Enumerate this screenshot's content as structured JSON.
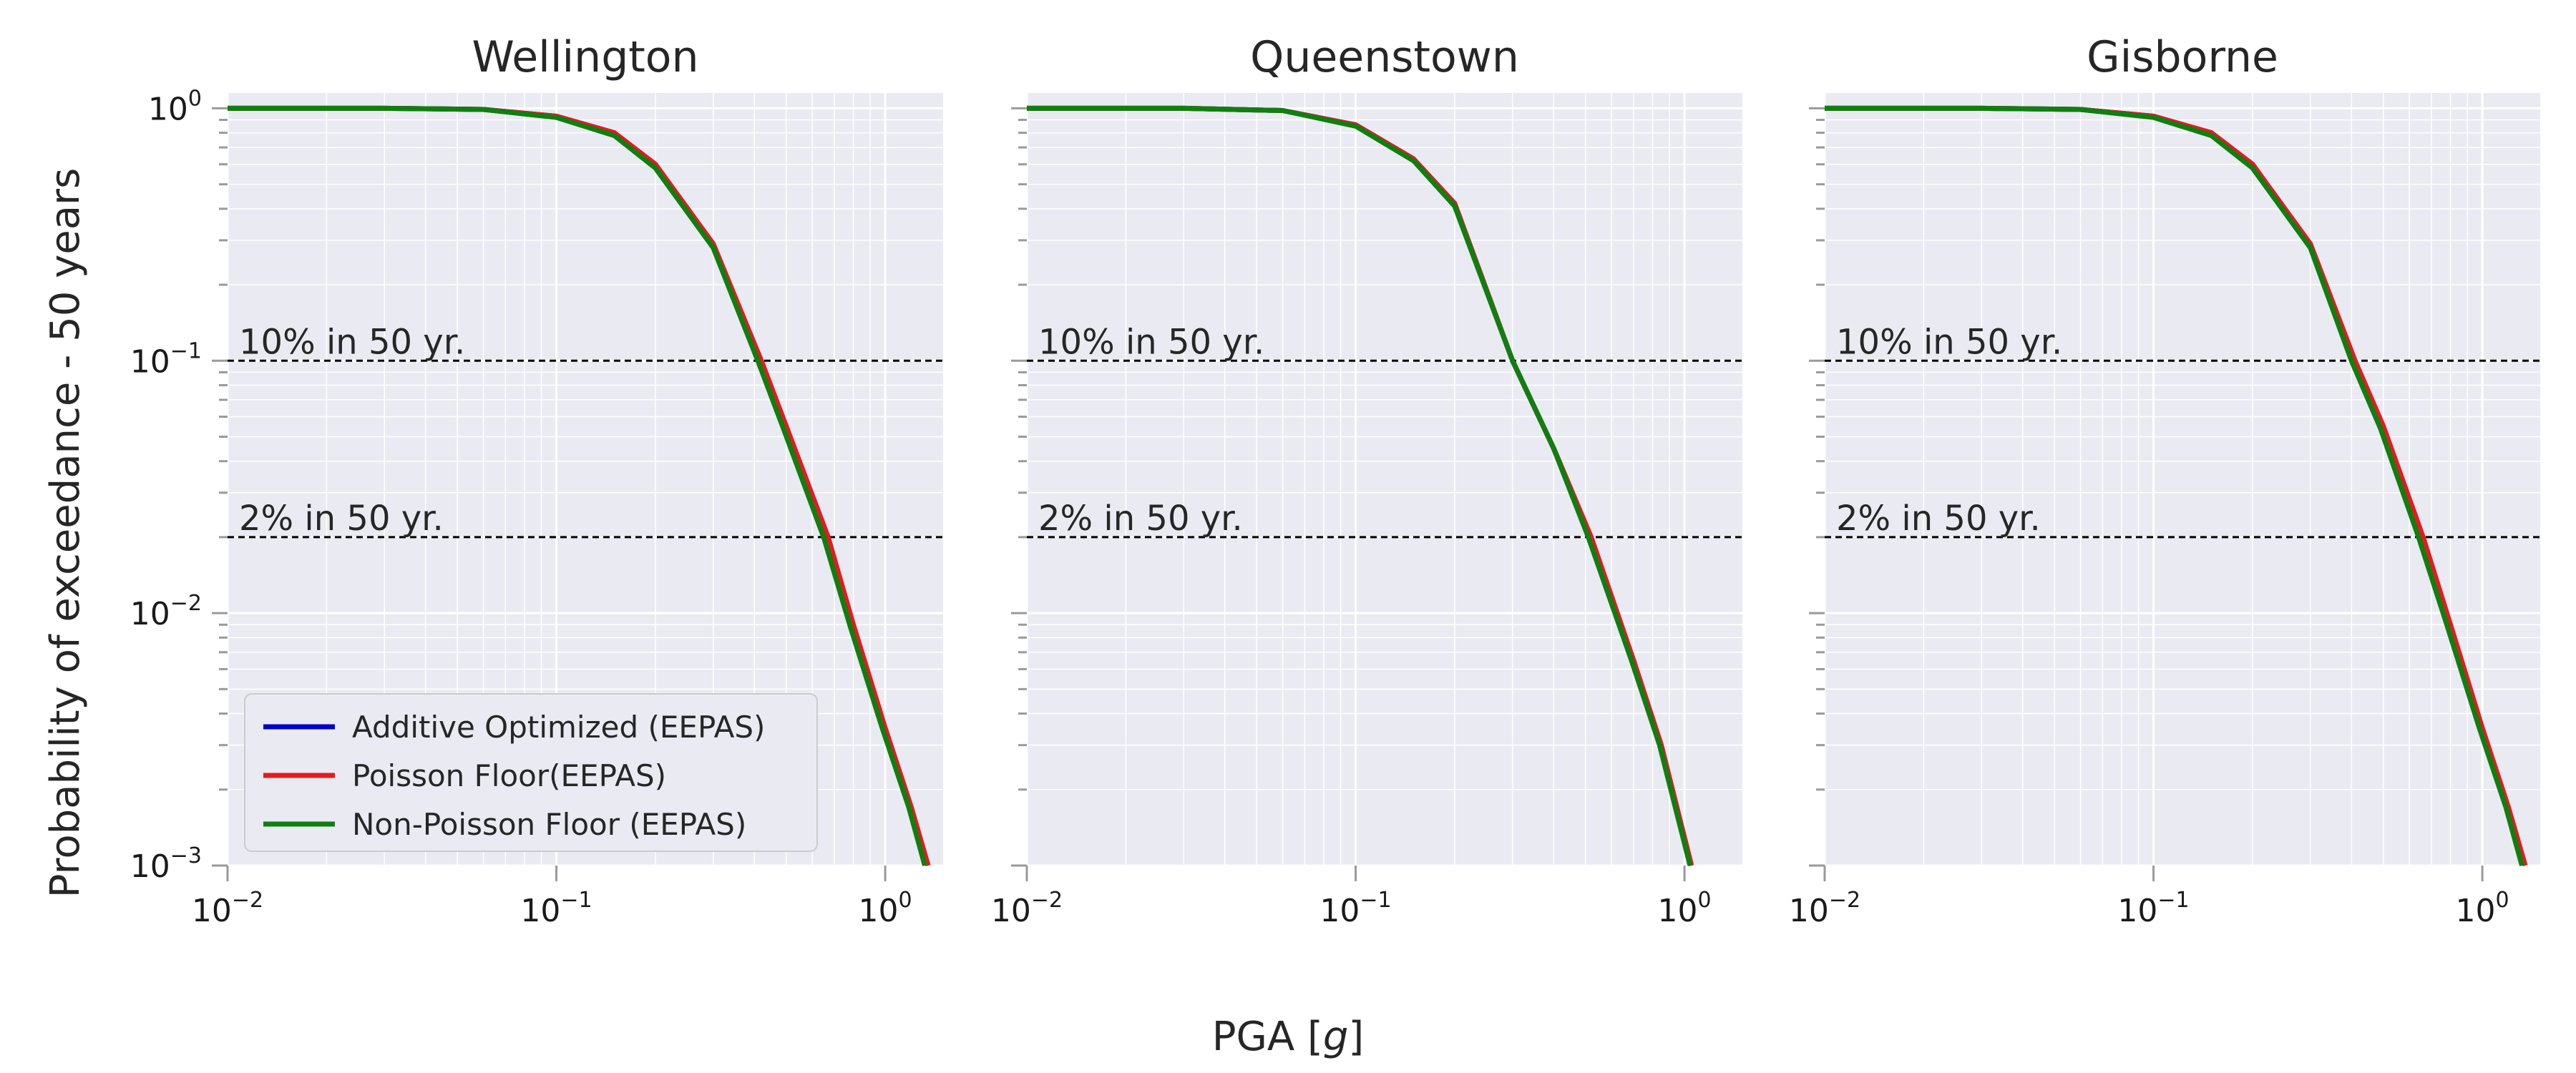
{
  "figure": {
    "ylabel": "Probability of exceedance - 50 years",
    "xlabel_prefix": "PGA [",
    "xlabel_var": "g",
    "xlabel_suffix": "]"
  },
  "colors": {
    "plot_background": "#eaeaf2",
    "grid": "#ffffff",
    "reference_line": "#000000",
    "series": [
      "#0000cc",
      "#e8191d",
      "#0f7f0f"
    ]
  },
  "chart_data": [
    {
      "type": "line",
      "title": "Wellington",
      "xscale": "log",
      "yscale": "log",
      "xlim": [
        0.01,
        1.5
      ],
      "ylim": [
        0.001,
        1.15
      ],
      "xticks": [
        {
          "base": "10",
          "exp": "−2",
          "value": 0.01
        },
        {
          "base": "10",
          "exp": "−1",
          "value": 0.1
        },
        {
          "base": "10",
          "exp": "0",
          "value": 1
        }
      ],
      "yticks": [
        {
          "base": "10",
          "exp": "0",
          "value": 1
        },
        {
          "base": "10",
          "exp": "−1",
          "value": 0.1
        },
        {
          "base": "10",
          "exp": "−2",
          "value": 0.01
        },
        {
          "base": "10",
          "exp": "−3",
          "value": 0.001
        }
      ],
      "reference_lines": [
        {
          "y": 0.1,
          "label": "10% in 50 yr."
        },
        {
          "y": 0.02,
          "label": "2% in 50 yr."
        }
      ],
      "series": [
        {
          "name": "Additive Optimized (EEPAS)",
          "x": [
            0.01,
            0.03,
            0.06,
            0.1,
            0.15,
            0.2,
            0.3,
            0.42,
            0.5,
            0.67,
            0.8,
            1.0,
            1.2,
            1.35
          ],
          "y": [
            1.0,
            1.0,
            0.99,
            0.93,
            0.8,
            0.6,
            0.29,
            0.1,
            0.055,
            0.02,
            0.009,
            0.0035,
            0.0017,
            0.001
          ]
        },
        {
          "name": "Poisson Floor(EEPAS)",
          "x": [
            0.01,
            0.03,
            0.06,
            0.1,
            0.15,
            0.2,
            0.3,
            0.42,
            0.5,
            0.67,
            0.8,
            1.0,
            1.2,
            1.35
          ],
          "y": [
            1.0,
            1.0,
            0.99,
            0.93,
            0.8,
            0.6,
            0.29,
            0.1,
            0.055,
            0.02,
            0.009,
            0.0035,
            0.0017,
            0.001
          ]
        },
        {
          "name": "Non-Poisson Floor (EEPAS)",
          "x": [
            0.01,
            0.03,
            0.06,
            0.1,
            0.15,
            0.2,
            0.3,
            0.41,
            0.49,
            0.65,
            0.78,
            0.98,
            1.18,
            1.32
          ],
          "y": [
            1.0,
            1.0,
            0.99,
            0.92,
            0.78,
            0.58,
            0.28,
            0.1,
            0.054,
            0.02,
            0.009,
            0.0035,
            0.0017,
            0.001
          ]
        }
      ]
    },
    {
      "type": "line",
      "title": "Queenstown",
      "xscale": "log",
      "yscale": "log",
      "xlim": [
        0.01,
        1.5
      ],
      "ylim": [
        0.001,
        1.15
      ],
      "xticks": [
        {
          "base": "10",
          "exp": "−2",
          "value": 0.01
        },
        {
          "base": "10",
          "exp": "−1",
          "value": 0.1
        },
        {
          "base": "10",
          "exp": "0",
          "value": 1
        }
      ],
      "yticks": [
        {
          "base": "10",
          "exp": "0",
          "value": 1
        },
        {
          "base": "10",
          "exp": "−1",
          "value": 0.1
        },
        {
          "base": "10",
          "exp": "−2",
          "value": 0.01
        },
        {
          "base": "10",
          "exp": "−3",
          "value": 0.001
        }
      ],
      "reference_lines": [
        {
          "y": 0.1,
          "label": "10% in 50 yr."
        },
        {
          "y": 0.02,
          "label": "2% in 50 yr."
        }
      ],
      "series": [
        {
          "name": "Additive Optimized (EEPAS)",
          "x": [
            0.01,
            0.03,
            0.06,
            0.1,
            0.15,
            0.2,
            0.3,
            0.4,
            0.52,
            0.7,
            0.85,
            1.05
          ],
          "y": [
            1.0,
            1.0,
            0.98,
            0.86,
            0.63,
            0.42,
            0.1,
            0.045,
            0.02,
            0.0065,
            0.003,
            0.001
          ]
        },
        {
          "name": "Poisson Floor(EEPAS)",
          "x": [
            0.01,
            0.03,
            0.06,
            0.1,
            0.15,
            0.2,
            0.3,
            0.4,
            0.52,
            0.7,
            0.85,
            1.05
          ],
          "y": [
            1.0,
            1.0,
            0.98,
            0.86,
            0.63,
            0.42,
            0.1,
            0.045,
            0.02,
            0.0065,
            0.003,
            0.001
          ]
        },
        {
          "name": "Non-Poisson Floor (EEPAS)",
          "x": [
            0.01,
            0.03,
            0.06,
            0.1,
            0.15,
            0.2,
            0.3,
            0.4,
            0.51,
            0.69,
            0.84,
            1.04
          ],
          "y": [
            1.0,
            1.0,
            0.98,
            0.85,
            0.62,
            0.41,
            0.1,
            0.045,
            0.02,
            0.0065,
            0.003,
            0.001
          ]
        }
      ]
    },
    {
      "type": "line",
      "title": "Gisborne",
      "xscale": "log",
      "yscale": "log",
      "xlim": [
        0.01,
        1.5
      ],
      "ylim": [
        0.001,
        1.15
      ],
      "xticks": [
        {
          "base": "10",
          "exp": "−2",
          "value": 0.01
        },
        {
          "base": "10",
          "exp": "−1",
          "value": 0.1
        },
        {
          "base": "10",
          "exp": "0",
          "value": 1
        }
      ],
      "yticks": [
        {
          "base": "10",
          "exp": "0",
          "value": 1
        },
        {
          "base": "10",
          "exp": "−1",
          "value": 0.1
        },
        {
          "base": "10",
          "exp": "−2",
          "value": 0.01
        },
        {
          "base": "10",
          "exp": "−3",
          "value": 0.001
        }
      ],
      "reference_lines": [
        {
          "y": 0.1,
          "label": "10% in 50 yr."
        },
        {
          "y": 0.02,
          "label": "2% in 50 yr."
        }
      ],
      "series": [
        {
          "name": "Additive Optimized (EEPAS)",
          "x": [
            0.01,
            0.03,
            0.06,
            0.1,
            0.15,
            0.2,
            0.3,
            0.41,
            0.5,
            0.66,
            0.8,
            1.0,
            1.2,
            1.35
          ],
          "y": [
            1.0,
            1.0,
            0.99,
            0.93,
            0.8,
            0.6,
            0.29,
            0.1,
            0.055,
            0.02,
            0.009,
            0.0035,
            0.0017,
            0.001
          ]
        },
        {
          "name": "Poisson Floor(EEPAS)",
          "x": [
            0.01,
            0.03,
            0.06,
            0.1,
            0.15,
            0.2,
            0.3,
            0.41,
            0.5,
            0.66,
            0.8,
            1.0,
            1.2,
            1.35
          ],
          "y": [
            1.0,
            1.0,
            0.99,
            0.93,
            0.8,
            0.6,
            0.29,
            0.1,
            0.055,
            0.02,
            0.009,
            0.0035,
            0.0017,
            0.001
          ]
        },
        {
          "name": "Non-Poisson Floor (EEPAS)",
          "x": [
            0.01,
            0.03,
            0.06,
            0.1,
            0.15,
            0.2,
            0.3,
            0.4,
            0.49,
            0.64,
            0.78,
            0.98,
            1.18,
            1.32
          ],
          "y": [
            1.0,
            1.0,
            0.99,
            0.92,
            0.78,
            0.58,
            0.28,
            0.1,
            0.054,
            0.02,
            0.009,
            0.0035,
            0.0017,
            0.001
          ]
        }
      ]
    }
  ],
  "legend": {
    "placement": "lower-left",
    "panel": 0,
    "entries": [
      "Additive Optimized (EEPAS)",
      "Poisson Floor(EEPAS)",
      "Non-Poisson Floor (EEPAS)"
    ]
  }
}
